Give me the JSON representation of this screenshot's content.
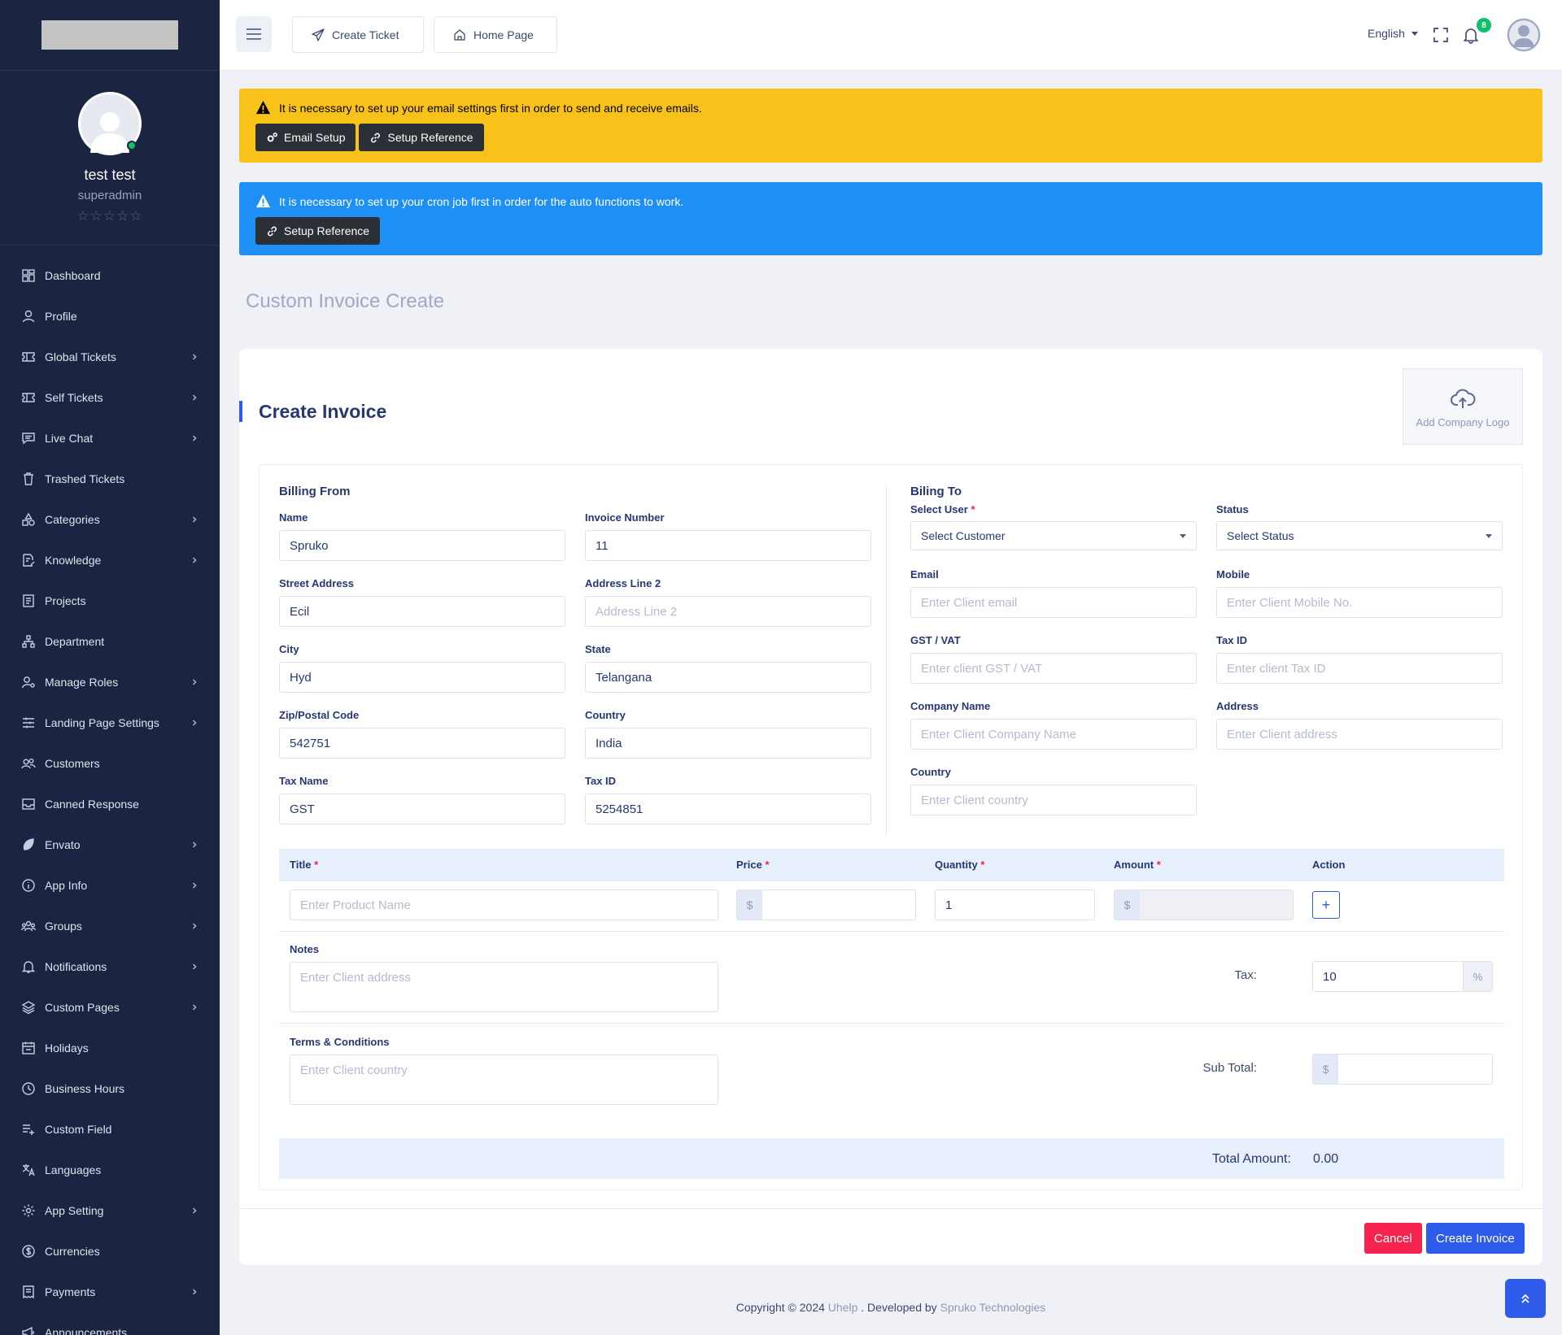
{
  "sidebar": {
    "user": {
      "name": "test test",
      "role": "superadmin",
      "stars": "☆☆☆☆☆"
    },
    "items": [
      {
        "label": "Dashboard",
        "icon": "dashboard-icon",
        "has_children": false
      },
      {
        "label": "Profile",
        "icon": "user-icon",
        "has_children": false
      },
      {
        "label": "Global Tickets",
        "icon": "ticket-icon",
        "has_children": true
      },
      {
        "label": "Self Tickets",
        "icon": "ticket-icon",
        "has_children": true
      },
      {
        "label": "Live Chat",
        "icon": "chat-icon",
        "has_children": true
      },
      {
        "label": "Trashed Tickets",
        "icon": "trash-icon",
        "has_children": false
      },
      {
        "label": "Categories",
        "icon": "shapes-icon",
        "has_children": true
      },
      {
        "label": "Knowledge",
        "icon": "edit-doc-icon",
        "has_children": true
      },
      {
        "label": "Projects",
        "icon": "document-icon",
        "has_children": false
      },
      {
        "label": "Department",
        "icon": "sitemap-icon",
        "has_children": false
      },
      {
        "label": "Manage Roles",
        "icon": "user-gear-icon",
        "has_children": true
      },
      {
        "label": "Landing Page Settings",
        "icon": "sliders-icon",
        "has_children": true
      },
      {
        "label": "Customers",
        "icon": "users-icon",
        "has_children": false
      },
      {
        "label": "Canned Response",
        "icon": "inbox-icon",
        "has_children": false
      },
      {
        "label": "Envato",
        "icon": "leaf-icon",
        "has_children": true
      },
      {
        "label": "App Info",
        "icon": "info-icon",
        "has_children": true
      },
      {
        "label": "Groups",
        "icon": "group-icon",
        "has_children": true
      },
      {
        "label": "Notifications",
        "icon": "bell-icon",
        "has_children": true
      },
      {
        "label": "Custom Pages",
        "icon": "layers-icon",
        "has_children": true
      },
      {
        "label": "Holidays",
        "icon": "calendar-icon",
        "has_children": false
      },
      {
        "label": "Business Hours",
        "icon": "clock-icon",
        "has_children": false
      },
      {
        "label": "Custom Field",
        "icon": "list-add-icon",
        "has_children": false
      },
      {
        "label": "Languages",
        "icon": "translate-icon",
        "has_children": false
      },
      {
        "label": "App Setting",
        "icon": "gear-icon",
        "has_children": true
      },
      {
        "label": "Currencies",
        "icon": "dollar-icon",
        "has_children": false
      },
      {
        "label": "Payments",
        "icon": "receipt-icon",
        "has_children": true
      },
      {
        "label": "Announcements",
        "icon": "megaphone-icon",
        "has_children": false
      }
    ]
  },
  "header": {
    "create_ticket": "Create Ticket",
    "home_page": "Home Page",
    "language": "English",
    "notification_count": "8"
  },
  "alerts": {
    "email": {
      "message": "It is necessary to set up your email settings first in order to send and receive emails.",
      "buttons": [
        "Email Setup",
        "Setup Reference"
      ]
    },
    "cron": {
      "message": "It is necessary to set up your cron job first in order for the auto functions to work.",
      "button": "Setup Reference"
    }
  },
  "page_title": "Custom Invoice Create",
  "invoice": {
    "title": "Create Invoice",
    "add_logo": "Add Company Logo",
    "billing_from": {
      "heading": "Billing From",
      "fields": {
        "name": {
          "label": "Name",
          "value": "Spruko"
        },
        "invoice_number": {
          "label": "Invoice Number",
          "value": "11"
        },
        "street": {
          "label": "Street Address",
          "value": "Ecil"
        },
        "address2": {
          "label": "Address Line 2",
          "placeholder": "Address Line 2"
        },
        "city": {
          "label": "City",
          "value": "Hyd"
        },
        "state": {
          "label": "State",
          "value": "Telangana"
        },
        "zip": {
          "label": "Zip/Postal Code",
          "value": "542751"
        },
        "country": {
          "label": "Country",
          "value": "India"
        },
        "tax_name": {
          "label": "Tax Name",
          "value": "GST"
        },
        "tax_id": {
          "label": "Tax ID",
          "value": "5254851"
        }
      }
    },
    "billing_to": {
      "heading": "Biling To",
      "fields": {
        "user": {
          "label": "Select User",
          "value": "Select Customer"
        },
        "status": {
          "label": "Status",
          "value": "Select Status"
        },
        "email": {
          "label": "Email",
          "placeholder": "Enter Client email"
        },
        "mobile": {
          "label": "Mobile",
          "placeholder": "Enter Client Mobile No."
        },
        "gst": {
          "label": "GST / VAT",
          "placeholder": "Enter client GST / VAT"
        },
        "tax_id": {
          "label": "Tax ID",
          "placeholder": "Enter client Tax ID"
        },
        "company": {
          "label": "Company Name",
          "placeholder": "Enter Client Company Name"
        },
        "address": {
          "label": "Address",
          "placeholder": "Enter Client address"
        },
        "country": {
          "label": "Country",
          "placeholder": "Enter Client country"
        }
      }
    },
    "items": {
      "columns": [
        "Title",
        "Price",
        "Quantity",
        "Amount",
        "Action"
      ],
      "title_placeholder": "Enter Product Name",
      "currency": "$",
      "quantity": "1",
      "add": "+"
    },
    "notes": {
      "label": "Notes",
      "placeholder": "Enter Client address"
    },
    "terms": {
      "label": "Terms & Conditions",
      "placeholder": "Enter Client country"
    },
    "tax": {
      "label": "Tax:",
      "value": "10",
      "unit": "%"
    },
    "subtotal": {
      "label": "Sub Total:",
      "currency": "$"
    },
    "total": {
      "label": "Total Amount:",
      "value": "0.00"
    },
    "cancel": "Cancel",
    "create": "Create Invoice"
  },
  "footer": {
    "prefix": "Copyright © 2024 ",
    "brand": "Uhelp",
    "middle": " . Developed by ",
    "company": "Spruko Technologies"
  },
  "colors": {
    "sidebar_bg": "#1b2440",
    "primary": "#2f5bea",
    "warning": "#f8c21b",
    "info": "#1e90f5",
    "danger": "#f5234d",
    "online": "#13bf6b"
  }
}
